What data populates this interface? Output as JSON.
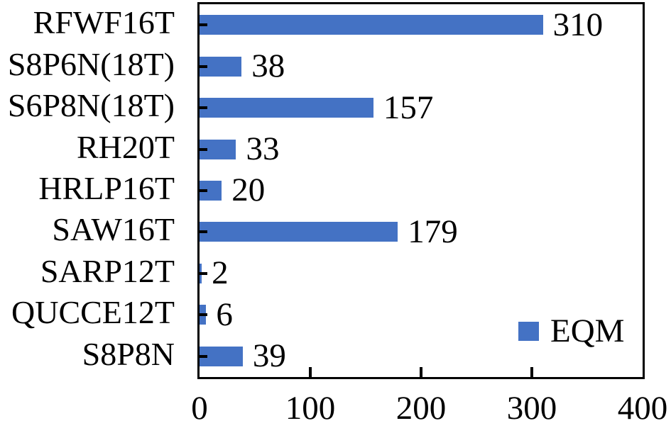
{
  "chart_data": {
    "type": "bar",
    "orientation": "horizontal",
    "title": "",
    "xlabel": "",
    "ylabel": "",
    "categories": [
      "RFWF16T",
      "S8P6N(18T)",
      "S6P8N(18T)",
      "RH20T",
      "HRLP16T",
      "SAW16T",
      "SARP12T",
      "QUCCE12T",
      "S8P8N"
    ],
    "values": [
      310,
      38,
      157,
      33,
      20,
      179,
      2,
      6,
      39
    ],
    "data_labels": [
      "310",
      "38",
      "157",
      "33",
      "20",
      "179",
      "2",
      "6",
      "39"
    ],
    "series_name": "EQM",
    "xlim": [
      0,
      400
    ],
    "x_ticks": [
      0,
      100,
      200,
      300,
      400
    ],
    "grid": false,
    "legend_position": "inside-lower-right",
    "bar_color": "#4472C4",
    "axis_color": "#000000",
    "text_color": "#000000"
  }
}
